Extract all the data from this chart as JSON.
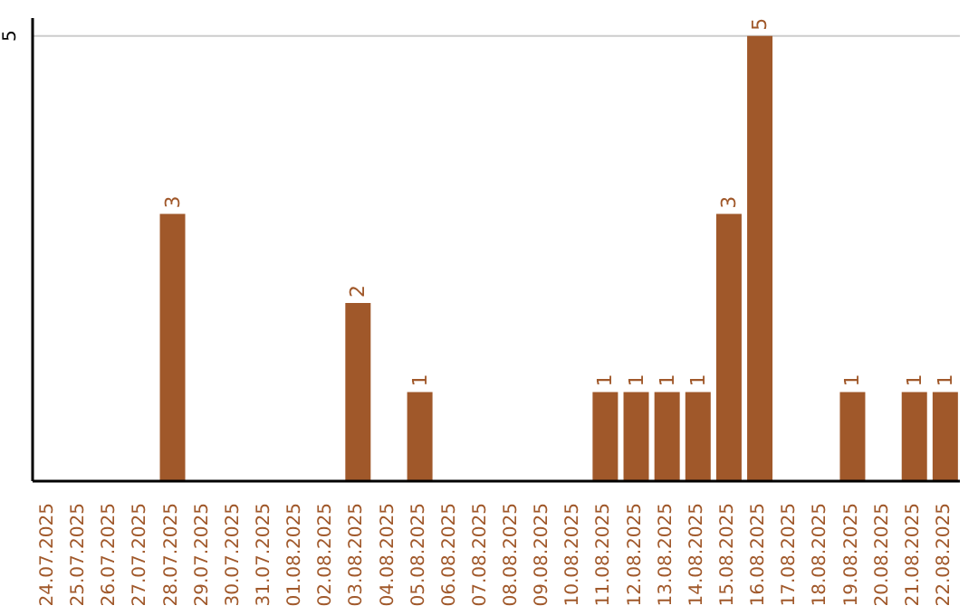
{
  "chart_data": {
    "type": "bar",
    "categories": [
      "24.07.2025",
      "25.07.2025",
      "26.07.2025",
      "27.07.2025",
      "28.07.2025",
      "29.07.2025",
      "30.07.2025",
      "31.07.2025",
      "01.08.2025",
      "02.08.2025",
      "03.08.2025",
      "04.08.2025",
      "05.08.2025",
      "06.08.2025",
      "07.08.2025",
      "08.08.2025",
      "09.08.2025",
      "10.08.2025",
      "11.08.2025",
      "12.08.2025",
      "13.08.2025",
      "14.08.2025",
      "15.08.2025",
      "16.08.2025",
      "17.08.2025",
      "18.08.2025",
      "19.08.2025",
      "20.08.2025",
      "21.08.2025",
      "22.08.2025"
    ],
    "values": [
      0,
      0,
      0,
      0,
      3,
      0,
      0,
      0,
      0,
      0,
      2,
      0,
      1,
      0,
      0,
      0,
      0,
      0,
      1,
      1,
      1,
      1,
      3,
      5,
      0,
      0,
      1,
      0,
      1,
      1
    ],
    "value_labels": [
      null,
      null,
      null,
      null,
      "3",
      null,
      null,
      null,
      null,
      null,
      "2",
      null,
      "1",
      null,
      null,
      null,
      null,
      null,
      "1",
      "1",
      "1",
      "1",
      "3",
      "5",
      null,
      null,
      "1",
      null,
      "1",
      "1"
    ],
    "color": "#a0582a",
    "ylim": [
      0,
      5.2
    ],
    "yticks": [
      5
    ],
    "grid": "y"
  }
}
